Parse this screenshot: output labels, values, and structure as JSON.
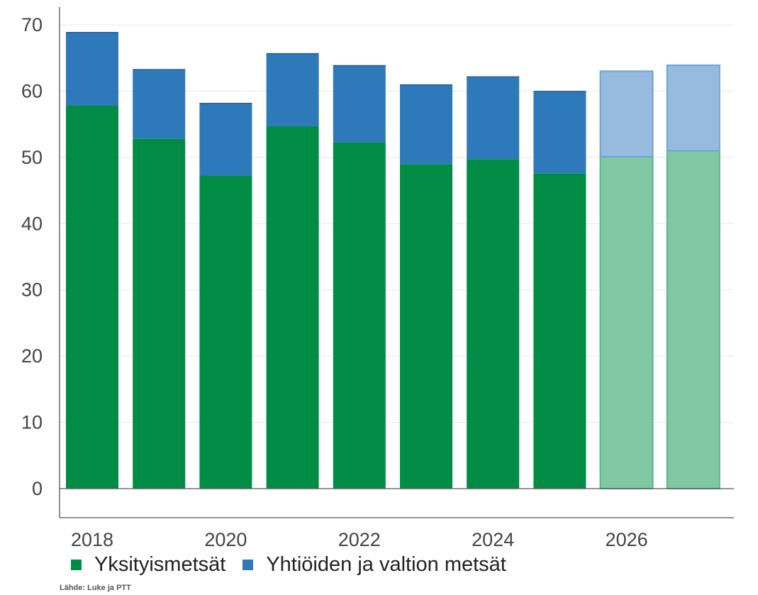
{
  "chart_data": {
    "type": "bar",
    "stacked": true,
    "categories": [
      "2018",
      "2019",
      "2020",
      "2021",
      "2022",
      "2023",
      "2024",
      "2025",
      "2026",
      "2027"
    ],
    "x_tick_labels": [
      "2018",
      "2020",
      "2022",
      "2024",
      "2026"
    ],
    "series": [
      {
        "name": "Yksityismetsät",
        "values": [
          57.8,
          52.8,
          47.2,
          54.7,
          52.3,
          49.0,
          49.7,
          47.6,
          50.1,
          51.0
        ]
      },
      {
        "name": "Yhtiöiden ja valtion metsät",
        "values": [
          11.1,
          10.5,
          11.0,
          11.0,
          11.6,
          12.0,
          12.5,
          12.4,
          12.9,
          12.9
        ]
      }
    ],
    "forecast_categories": [
      "2026",
      "2027"
    ],
    "ylim": [
      0,
      70
    ],
    "y_ticks": [
      0,
      10,
      20,
      30,
      40,
      50,
      60,
      70
    ],
    "grid": true,
    "legend_position": "bottom-left",
    "title": "",
    "xlabel": "",
    "ylabel": ""
  },
  "colors": {
    "private": "#008c44",
    "company_state": "#2e79ba",
    "private_forecast": "#80c8a2",
    "company_state_forecast": "#96bbdf",
    "grid": "#e8e8e8",
    "axis": "#555555"
  },
  "legend": {
    "items": [
      {
        "label": "Yksityismetsät",
        "color": "#008c44"
      },
      {
        "label": "Yhtiöiden ja valtion metsät",
        "color": "#2e79ba"
      }
    ]
  },
  "source": "Lähde: Luke ja PTT"
}
